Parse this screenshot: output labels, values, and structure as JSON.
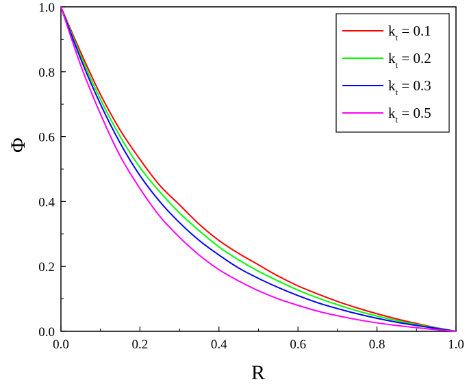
{
  "chart_data": {
    "type": "line",
    "title": "",
    "xlabel": "R",
    "ylabel": "Φ",
    "xlim": [
      0.0,
      1.0
    ],
    "ylim": [
      0.0,
      1.0
    ],
    "xticks": [
      "0.0",
      "0.2",
      "0.4",
      "0.6",
      "0.8",
      "1.0"
    ],
    "yticks": [
      "0.0",
      "0.2",
      "0.4",
      "0.6",
      "0.8",
      "1.0"
    ],
    "grid": false,
    "legend_position": "top-right",
    "x": [
      0.0,
      0.05,
      0.1,
      0.15,
      0.2,
      0.25,
      0.3,
      0.35,
      0.4,
      0.45,
      0.5,
      0.55,
      0.6,
      0.65,
      0.7,
      0.75,
      0.8,
      0.85,
      0.9,
      0.95,
      1.0
    ],
    "series": [
      {
        "legend_main": "k",
        "legend_sub": "t",
        "legend_value": " = 0.1",
        "color": "#ff0000",
        "values": [
          1.0,
          0.86,
          0.73,
          0.62,
          0.53,
          0.45,
          0.39,
          0.33,
          0.28,
          0.24,
          0.205,
          0.17,
          0.14,
          0.115,
          0.092,
          0.072,
          0.054,
          0.038,
          0.024,
          0.011,
          0.0
        ]
      },
      {
        "legend_main": "k",
        "legend_sub": "t",
        "legend_value": " = 0.2",
        "color": "#00ff00",
        "values": [
          1.0,
          0.85,
          0.715,
          0.6,
          0.505,
          0.43,
          0.365,
          0.31,
          0.26,
          0.22,
          0.185,
          0.155,
          0.127,
          0.103,
          0.082,
          0.063,
          0.047,
          0.033,
          0.021,
          0.01,
          0.0
        ]
      },
      {
        "legend_main": "k",
        "legend_sub": "t",
        "legend_value": " = 0.3",
        "color": "#0000ff",
        "values": [
          1.0,
          0.84,
          0.7,
          0.58,
          0.48,
          0.4,
          0.335,
          0.28,
          0.235,
          0.195,
          0.163,
          0.135,
          0.11,
          0.088,
          0.07,
          0.054,
          0.04,
          0.028,
          0.018,
          0.009,
          0.0
        ]
      },
      {
        "legend_main": "k",
        "legend_sub": "t",
        "legend_value": " = 0.5",
        "color": "#ff00ff",
        "values": [
          1.0,
          0.82,
          0.67,
          0.54,
          0.44,
          0.355,
          0.29,
          0.235,
          0.19,
          0.155,
          0.125,
          0.1,
          0.08,
          0.062,
          0.048,
          0.036,
          0.026,
          0.018,
          0.011,
          0.005,
          0.0
        ]
      }
    ]
  }
}
